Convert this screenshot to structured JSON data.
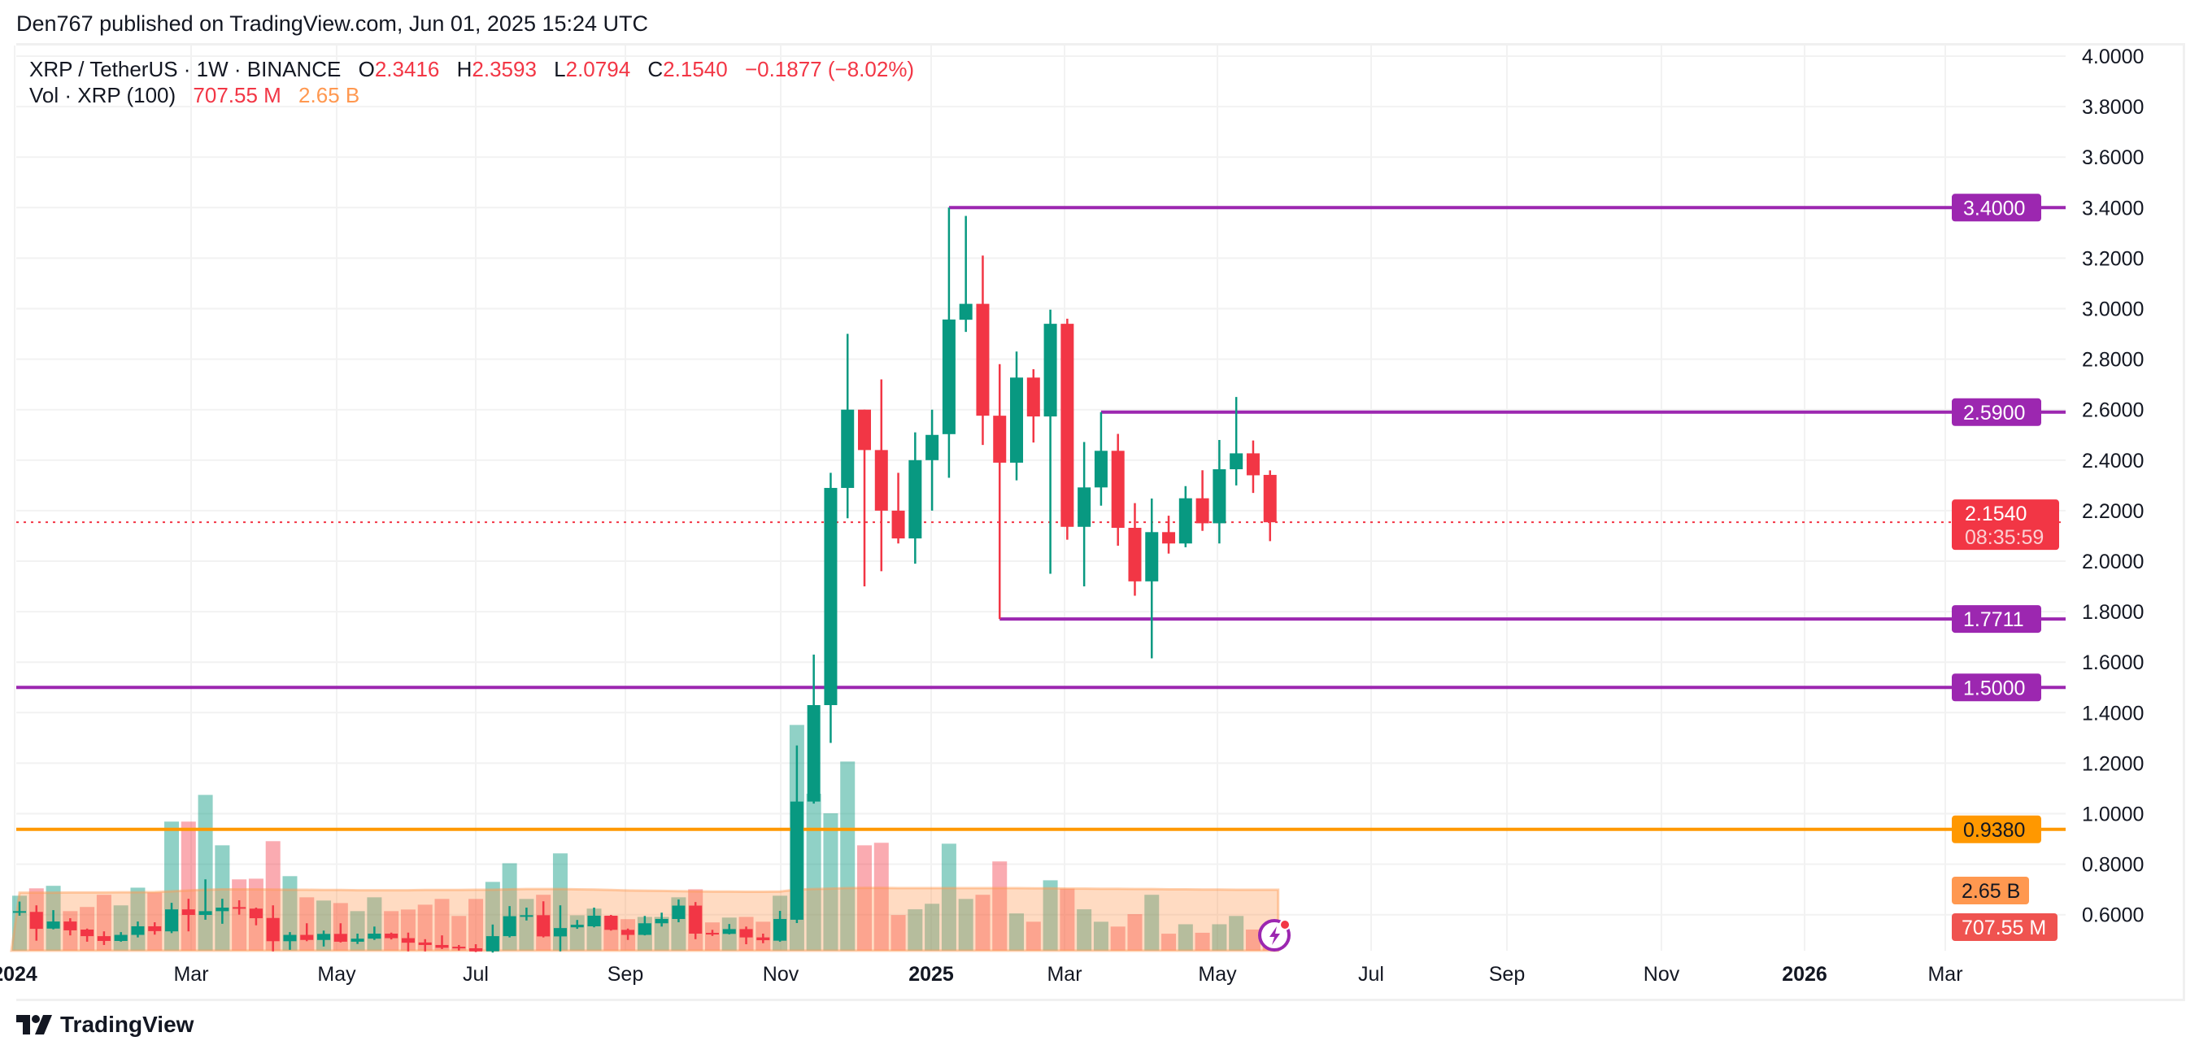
{
  "header": {
    "publisher_line": "Den767 published on TradingView.com, Jun 01, 2025 15:24 UTC"
  },
  "legend": {
    "symbol": "XRP / TetherUS · 1W · BINANCE",
    "open_label": "O",
    "open": "2.3416",
    "high_label": "H",
    "high": "2.3593",
    "low_label": "L",
    "low": "2.0794",
    "close_label": "C",
    "close": "2.1540",
    "change": "−0.1877 (−8.02%)",
    "volume_label": "Vol · XRP (100)",
    "volume": "707.55 M",
    "volume_ma": "2.65 B"
  },
  "footer": {
    "brand": "TradingView"
  },
  "colors": {
    "up": "#089981",
    "down": "#f23645",
    "level_line": "#9c27b0",
    "support_line": "#ff9800",
    "volume_ma": "#ff9850"
  },
  "chart_data": {
    "type": "candlestick",
    "interval": "1W",
    "ohlc_fields": [
      "open",
      "high",
      "low",
      "close"
    ],
    "ohlc": [
      [
        0.608,
        0.652,
        0.596,
        0.614
      ],
      [
        0.611,
        0.637,
        0.497,
        0.544
      ],
      [
        0.545,
        0.618,
        0.542,
        0.573
      ],
      [
        0.573,
        0.586,
        0.518,
        0.538
      ],
      [
        0.541,
        0.545,
        0.493,
        0.515
      ],
      [
        0.515,
        0.534,
        0.48,
        0.496
      ],
      [
        0.496,
        0.531,
        0.493,
        0.52
      ],
      [
        0.52,
        0.573,
        0.51,
        0.554
      ],
      [
        0.554,
        0.57,
        0.521,
        0.535
      ],
      [
        0.534,
        0.647,
        0.527,
        0.621
      ],
      [
        0.621,
        0.663,
        0.534,
        0.599
      ],
      [
        0.599,
        0.74,
        0.58,
        0.614
      ],
      [
        0.614,
        0.663,
        0.564,
        0.628
      ],
      [
        0.63,
        0.657,
        0.6,
        0.624
      ],
      [
        0.624,
        0.628,
        0.558,
        0.586
      ],
      [
        0.587,
        0.637,
        0.455,
        0.495
      ],
      [
        0.495,
        0.531,
        0.461,
        0.52
      ],
      [
        0.52,
        0.566,
        0.495,
        0.5
      ],
      [
        0.5,
        0.537,
        0.474,
        0.524
      ],
      [
        0.524,
        0.566,
        0.49,
        0.493
      ],
      [
        0.493,
        0.525,
        0.484,
        0.505
      ],
      [
        0.505,
        0.553,
        0.5,
        0.525
      ],
      [
        0.525,
        0.529,
        0.502,
        0.507
      ],
      [
        0.507,
        0.529,
        0.455,
        0.489
      ],
      [
        0.49,
        0.503,
        0.455,
        0.48
      ],
      [
        0.48,
        0.518,
        0.464,
        0.469
      ],
      [
        0.473,
        0.48,
        0.458,
        0.467
      ],
      [
        0.467,
        0.483,
        0.452,
        0.455
      ],
      [
        0.455,
        0.561,
        0.45,
        0.515
      ],
      [
        0.515,
        0.634,
        0.51,
        0.594
      ],
      [
        0.594,
        0.628,
        0.577,
        0.598
      ],
      [
        0.598,
        0.653,
        0.51,
        0.514
      ],
      [
        0.514,
        0.637,
        0.455,
        0.547
      ],
      [
        0.55,
        0.579,
        0.544,
        0.56
      ],
      [
        0.554,
        0.628,
        0.55,
        0.596
      ],
      [
        0.596,
        0.599,
        0.537,
        0.54
      ],
      [
        0.54,
        0.545,
        0.5,
        0.52
      ],
      [
        0.52,
        0.595,
        0.518,
        0.566
      ],
      [
        0.566,
        0.608,
        0.553,
        0.583
      ],
      [
        0.583,
        0.66,
        0.57,
        0.636
      ],
      [
        0.636,
        0.65,
        0.503,
        0.525
      ],
      [
        0.528,
        0.54,
        0.516,
        0.524
      ],
      [
        0.524,
        0.563,
        0.522,
        0.543
      ],
      [
        0.543,
        0.553,
        0.483,
        0.51
      ],
      [
        0.51,
        0.525,
        0.487,
        0.499
      ],
      [
        0.497,
        0.615,
        0.493,
        0.583
      ],
      [
        0.58,
        1.27,
        0.567,
        1.048
      ],
      [
        1.048,
        1.63,
        1.04,
        1.43
      ],
      [
        1.43,
        2.35,
        1.28,
        2.29
      ],
      [
        2.29,
        2.9,
        2.17,
        2.6
      ],
      [
        2.6,
        2.6,
        1.9,
        2.44
      ],
      [
        2.44,
        2.72,
        1.96,
        2.2
      ],
      [
        2.2,
        2.35,
        2.07,
        2.09
      ],
      [
        2.09,
        2.51,
        1.99,
        2.4
      ],
      [
        2.4,
        2.6,
        2.2,
        2.5
      ],
      [
        2.503,
        3.4,
        2.33,
        2.957
      ],
      [
        2.956,
        3.367,
        2.908,
        3.019
      ],
      [
        3.019,
        3.21,
        2.46,
        2.576
      ],
      [
        2.576,
        2.78,
        1.7711,
        2.39
      ],
      [
        2.39,
        2.83,
        2.32,
        2.727
      ],
      [
        2.727,
        2.76,
        2.47,
        2.573
      ],
      [
        2.573,
        2.996,
        1.95,
        2.94
      ],
      [
        2.94,
        2.96,
        2.085,
        2.136
      ],
      [
        2.136,
        2.472,
        1.9,
        2.292
      ],
      [
        2.292,
        2.59,
        2.22,
        2.437
      ],
      [
        2.437,
        2.504,
        2.061,
        2.132
      ],
      [
        2.132,
        2.23,
        1.863,
        1.92
      ],
      [
        1.92,
        2.248,
        1.615,
        2.115
      ],
      [
        2.115,
        2.18,
        2.03,
        2.07
      ],
      [
        2.07,
        2.297,
        2.055,
        2.249
      ],
      [
        2.249,
        2.36,
        2.12,
        2.15
      ],
      [
        2.15,
        2.48,
        2.07,
        2.364
      ],
      [
        2.364,
        2.65,
        2.3,
        2.427
      ],
      [
        2.427,
        2.478,
        2.27,
        2.34
      ],
      [
        2.3416,
        2.3593,
        2.0794,
        2.154
      ]
    ],
    "volume_billions": [
      2.39,
      2.71,
      2.82,
      1.72,
      1.9,
      2.43,
      1.97,
      2.74,
      2.53,
      5.61,
      5.61,
      6.77,
      4.58,
      3.1,
      3.13,
      4.76,
      3.24,
      2.32,
      2.18,
      2.07,
      1.72,
      2.32,
      1.72,
      1.79,
      2.0,
      2.25,
      1.51,
      2.25,
      2.99,
      3.8,
      2.25,
      2.43,
      4.23,
      1.54,
      1.83,
      1.51,
      1.37,
      1.47,
      1.47,
      2.32,
      2.67,
      1.23,
      1.44,
      1.47,
      1.26,
      2.39,
      9.81,
      6.82,
      5.97,
      8.22,
      4.58,
      4.69,
      1.55,
      1.8,
      2.04,
      4.65,
      2.25,
      2.43,
      3.88,
      1.62,
      1.26,
      3.06,
      2.7,
      1.8,
      1.26,
      1.05,
      1.59,
      2.43,
      0.74,
      1.15,
      0.78,
      1.15,
      1.51,
      0.92,
      0.70755
    ],
    "volume_ma_billions": [
      2.52,
      2.52,
      2.52,
      2.53,
      2.53,
      2.53,
      2.54,
      2.54,
      2.55,
      2.58,
      2.62,
      2.65,
      2.67,
      2.67,
      2.67,
      2.66,
      2.65,
      2.65,
      2.64,
      2.64,
      2.63,
      2.63,
      2.63,
      2.63,
      2.64,
      2.64,
      2.64,
      2.65,
      2.65,
      2.67,
      2.68,
      2.68,
      2.68,
      2.67,
      2.66,
      2.64,
      2.62,
      2.61,
      2.6,
      2.59,
      2.58,
      2.57,
      2.57,
      2.56,
      2.56,
      2.57,
      2.66,
      2.68,
      2.7,
      2.72,
      2.73,
      2.73,
      2.72,
      2.72,
      2.72,
      2.72,
      2.72,
      2.72,
      2.72,
      2.72,
      2.71,
      2.71,
      2.7,
      2.7,
      2.69,
      2.69,
      2.68,
      2.68,
      2.67,
      2.67,
      2.66,
      2.66,
      2.65,
      2.65,
      2.65
    ],
    "ylim": [
      0.45,
      4.0
    ],
    "y_tick_labels": [
      "4.0000",
      "3.8000",
      "3.6000",
      "3.4000",
      "3.2000",
      "3.0000",
      "2.8000",
      "2.6000",
      "2.4000",
      "2.2000",
      "2.0000",
      "1.8000",
      "1.6000",
      "1.4000",
      "1.2000",
      "1.0000",
      "0.8000",
      "0.6000"
    ],
    "x_tick_labels": [
      {
        "label": "2024",
        "year": true
      },
      {
        "label": "Mar",
        "year": false
      },
      {
        "label": "May",
        "year": false
      },
      {
        "label": "Jul",
        "year": false
      },
      {
        "label": "Sep",
        "year": false
      },
      {
        "label": "Nov",
        "year": false
      },
      {
        "label": "2025",
        "year": true
      },
      {
        "label": "Mar",
        "year": false
      },
      {
        "label": "May",
        "year": false
      },
      {
        "label": "Jul",
        "year": false
      },
      {
        "label": "Sep",
        "year": false
      },
      {
        "label": "Nov",
        "year": false
      },
      {
        "label": "2026",
        "year": true
      },
      {
        "label": "Mar",
        "year": false
      }
    ],
    "horizontal_levels": [
      {
        "price": 3.4,
        "label": "3.4000",
        "color": "#9c27b0",
        "from_candle": 55
      },
      {
        "price": 2.59,
        "label": "2.5900",
        "color": "#9c27b0",
        "from_candle": 64
      },
      {
        "price": 1.7711,
        "label": "1.7711",
        "color": "#9c27b0",
        "from_candle": 58
      },
      {
        "price": 1.5,
        "label": "1.5000",
        "color": "#9c27b0",
        "from_candle": null
      },
      {
        "price": 0.938,
        "label": "0.9380",
        "color": "#ff9800",
        "from_candle": null
      }
    ],
    "last_price": {
      "price": 2.154,
      "label": "2.1540",
      "countdown": "08:35:59",
      "color": "#f23645"
    },
    "volume_badges": [
      {
        "label": "2.65 B",
        "color": "#ff9850"
      },
      {
        "label": "707.55 M",
        "color": "#ef5350"
      }
    ],
    "grid": true
  }
}
